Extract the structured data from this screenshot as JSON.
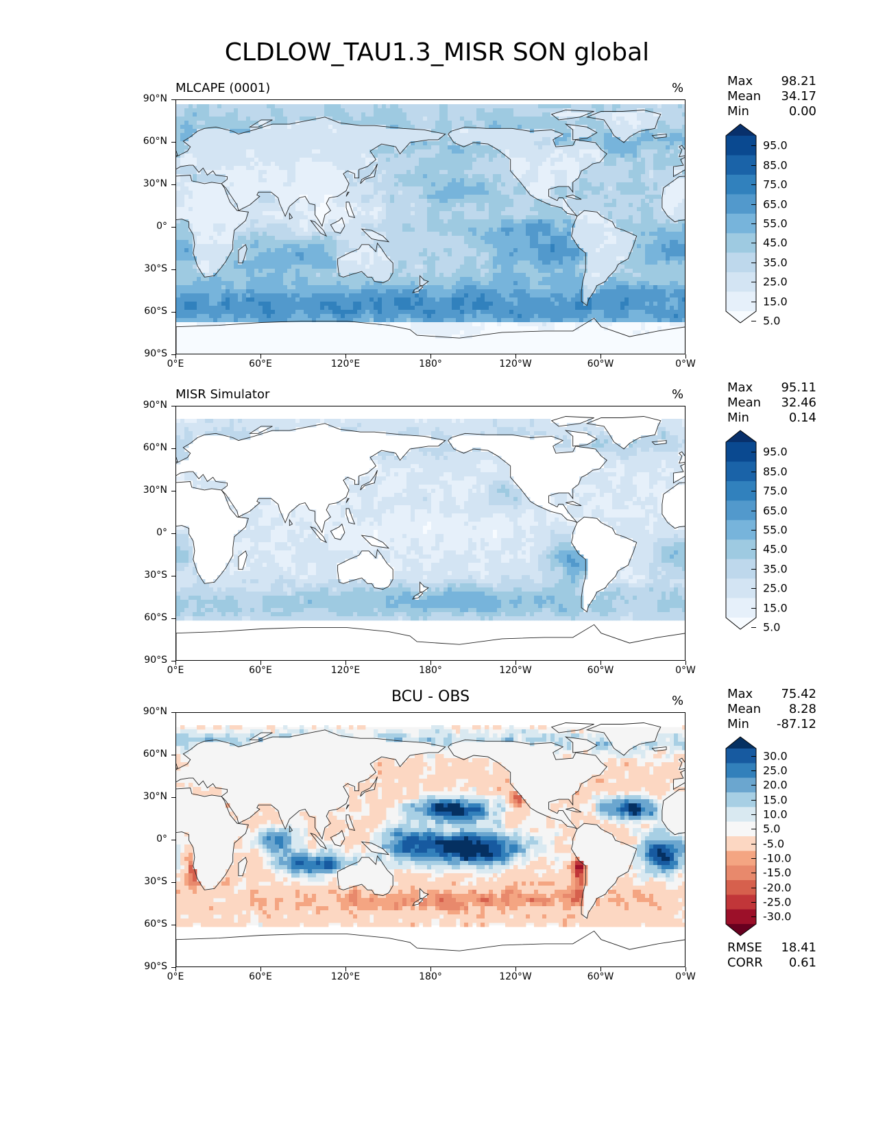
{
  "figure_title": "CLDLOW_TAU1.3_MISR SON global",
  "lat_ticks": [
    "90°N",
    "60°N",
    "30°N",
    "0°",
    "30°S",
    "60°S",
    "90°S"
  ],
  "lon_ticks": [
    "0°E",
    "60°E",
    "120°E",
    "180°",
    "120°W",
    "60°W",
    "0°W"
  ],
  "chart_data": [
    {
      "type": "heatmap",
      "title": "MLCAPE (0001)",
      "unit": "%",
      "stats": {
        "Max": "98.21",
        "Mean": "34.17",
        "Min": "0.00"
      },
      "colorbar_labels": [
        "95.0",
        "85.0",
        "75.0",
        "65.0",
        "55.0",
        "45.0",
        "35.0",
        "25.0",
        "15.0",
        "5.0"
      ],
      "colorbar_colors": [
        "#f7fbff",
        "#e6f0fa",
        "#d3e4f3",
        "#bed8ec",
        "#9ecae1",
        "#77b4db",
        "#5299cc",
        "#3181bd",
        "#1a63a8",
        "#0a4990",
        "#08306b"
      ],
      "clevels": [
        0,
        5,
        15,
        25,
        35,
        45,
        55,
        65,
        75,
        85,
        95,
        100
      ],
      "xlabel": "",
      "ylabel": "",
      "xlim": [
        0,
        360
      ],
      "ylim": [
        -90,
        90
      ]
    },
    {
      "type": "heatmap",
      "title": "MISR Simulator",
      "unit": "%",
      "stats": {
        "Max": "95.11",
        "Mean": "32.46",
        "Min": "0.14"
      },
      "colorbar_labels": [
        "95.0",
        "85.0",
        "75.0",
        "65.0",
        "55.0",
        "45.0",
        "35.0",
        "25.0",
        "15.0",
        "5.0"
      ],
      "colorbar_colors": [
        "#f7fbff",
        "#e6f0fa",
        "#d3e4f3",
        "#bed8ec",
        "#9ecae1",
        "#77b4db",
        "#5299cc",
        "#3181bd",
        "#1a63a8",
        "#0a4990",
        "#08306b"
      ],
      "clevels": [
        0,
        5,
        15,
        25,
        35,
        45,
        55,
        65,
        75,
        85,
        95,
        100
      ],
      "data_coverage_lat": [
        -60,
        80
      ],
      "xlim": [
        0,
        360
      ],
      "ylim": [
        -90,
        90
      ]
    },
    {
      "type": "heatmap",
      "title": "BCU - OBS",
      "unit": "%",
      "stats": {
        "Max": "75.42",
        "Mean": "8.28",
        "Min": "-87.12"
      },
      "extra_stats": {
        "RMSE": "18.41",
        "CORR": "0.61"
      },
      "colorbar_labels": [
        "30.0",
        "25.0",
        "20.0",
        "15.0",
        "10.0",
        "5.0",
        "-5.0",
        "-10.0",
        "-15.0",
        "-20.0",
        "-25.0",
        "-30.0"
      ],
      "colorbar_colors": [
        "#67001f",
        "#9c1029",
        "#c13639",
        "#d6604d",
        "#e8896c",
        "#f4a582",
        "#fcd7c2",
        "#f7f7f7",
        "#d9e9f1",
        "#a7cfe4",
        "#6ba6cf",
        "#3280bb",
        "#175aa0",
        "#053061"
      ],
      "clevels": [
        -35,
        -30,
        -25,
        -20,
        -15,
        -10,
        -5,
        5,
        10,
        15,
        20,
        25,
        30,
        35
      ],
      "data_coverage_lat": [
        -60,
        80
      ],
      "xlim": [
        0,
        360
      ],
      "ylim": [
        -90,
        90
      ]
    }
  ]
}
